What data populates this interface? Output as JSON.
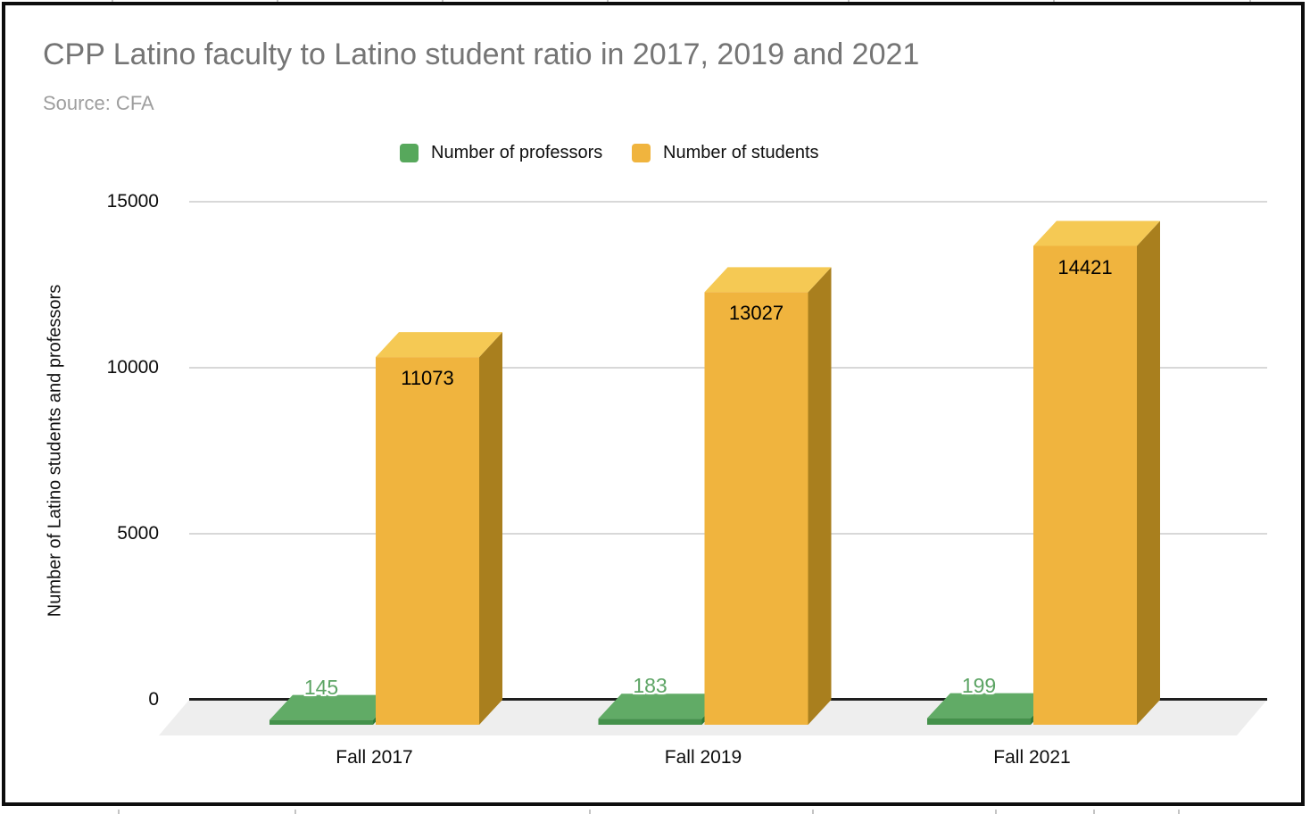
{
  "page": {
    "title": "CPP Latino faculty to Latino student ratio in 2017, 2019 and 2021",
    "subtitle": "Source: CFA"
  },
  "legend": [
    {
      "label": "Number of professors",
      "color": "#57a85c"
    },
    {
      "label": "Number of students",
      "color": "#f0b43e"
    }
  ],
  "chart_data": {
    "type": "bar",
    "projection": "3d-column",
    "title": "CPP Latino faculty to Latino student ratio in 2017, 2019 and 2021",
    "subtitle": "Source: CFA",
    "categories": [
      "Fall 2017",
      "Fall 2019",
      "Fall 2021"
    ],
    "series": [
      {
        "name": "Number of professors",
        "values": [
          145,
          183,
          199
        ],
        "colors": {
          "front": "#44914b",
          "top": "#61ab66",
          "side": "#2e7c3a",
          "label": "#5ca464"
        }
      },
      {
        "name": "Number of students",
        "values": [
          11073,
          13027,
          14421
        ],
        "colors": {
          "front": "#f0b43e",
          "top": "#f5c954",
          "side": "#a97f1e",
          "label": "#000000"
        }
      }
    ],
    "ylabel": "Number of Latino students and professors",
    "xlabel": "",
    "yticks": [
      0,
      5000,
      10000,
      15000
    ],
    "ylim": [
      0,
      15000
    ],
    "grid": true,
    "legend_position": "top",
    "data_labels_visible": true,
    "colors": {
      "gridline": "#d8d8d8",
      "axis_line": "#1e1e1e",
      "floor": "#eeeeee",
      "title_text": "#757575",
      "subtitle_text": "#9e9e9e",
      "tick_text": "#0c0c0c"
    }
  }
}
